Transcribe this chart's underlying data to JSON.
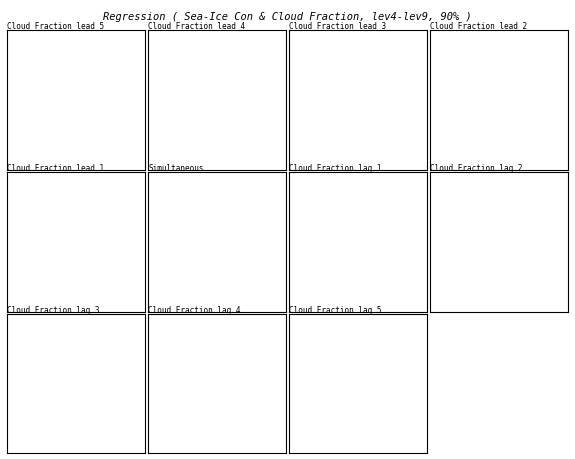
{
  "title": "Regression ( Sea-Ice Con & Cloud Fraction, lev4-lev9, 90% )",
  "title_fontsize": 7.5,
  "panels": [
    {
      "label": "Cloud Fraction lead 5",
      "row": 0,
      "col": 0
    },
    {
      "label": "Cloud Fraction lead 4",
      "row": 0,
      "col": 1
    },
    {
      "label": "Cloud Fraction lead 3",
      "row": 0,
      "col": 2
    },
    {
      "label": "Cloud Fraction lead 2",
      "row": 0,
      "col": 3
    },
    {
      "label": "Cloud Fraction lead 1",
      "row": 1,
      "col": 0
    },
    {
      "label": "Simultaneous",
      "row": 1,
      "col": 1
    },
    {
      "label": "Cloud Fraction lag 1",
      "row": 1,
      "col": 2
    },
    {
      "label": "Cloud Fraction lag 2",
      "row": 1,
      "col": 3
    },
    {
      "label": "Cloud Fraction lag 3",
      "row": 2,
      "col": 0
    },
    {
      "label": "Cloud Fraction lag 4",
      "row": 2,
      "col": 1
    },
    {
      "label": "Cloud Fraction lag 5",
      "row": 2,
      "col": 2
    }
  ],
  "bg_color": "#f0f0f0",
  "contour_neg_color": "#2255cc",
  "contour_pos_color": "#cc2222",
  "fill_neg_color": "#aabbee",
  "fill_pos_color": "#ffbbbb",
  "label_fontsize": 5.5,
  "contour_fontsize": 4.0
}
